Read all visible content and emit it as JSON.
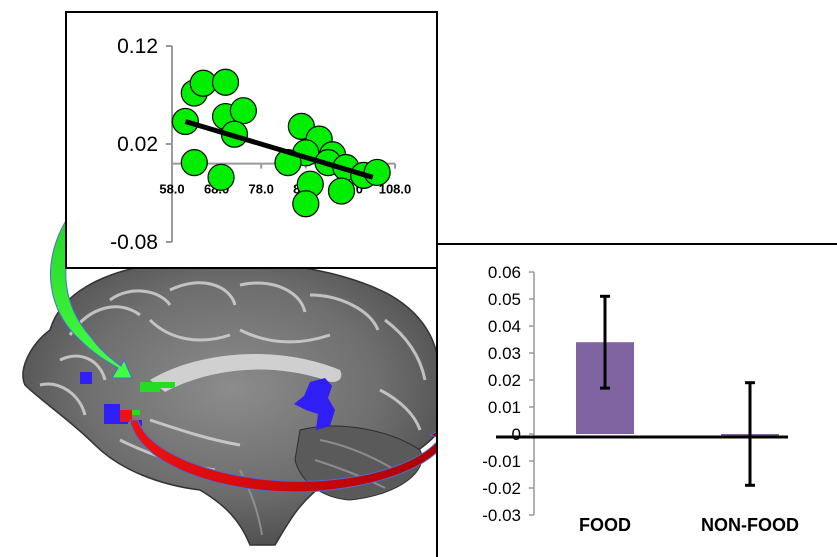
{
  "chart_data": [
    {
      "type": "scatter",
      "ylim": [
        -0.08,
        0.12
      ],
      "xlim": [
        58.0,
        108.0
      ],
      "y_ticks": [
        "0.12",
        "0.02",
        "-0.08"
      ],
      "x_ticks": [
        "58.0",
        "68.0",
        "78.0",
        "88.0",
        "98.0",
        "108.0"
      ],
      "points": [
        {
          "x": 61.0,
          "y": 0.043
        },
        {
          "x": 63.0,
          "y": 0.072
        },
        {
          "x": 65.0,
          "y": 0.082
        },
        {
          "x": 70.0,
          "y": 0.083
        },
        {
          "x": 70.0,
          "y": 0.048
        },
        {
          "x": 74.0,
          "y": 0.054
        },
        {
          "x": 72.0,
          "y": 0.03
        },
        {
          "x": 63.0,
          "y": 0.001
        },
        {
          "x": 69.0,
          "y": -0.014
        },
        {
          "x": 87.0,
          "y": 0.038
        },
        {
          "x": 91.0,
          "y": 0.025
        },
        {
          "x": 94.0,
          "y": 0.009
        },
        {
          "x": 88.0,
          "y": 0.011
        },
        {
          "x": 84.0,
          "y": 0.001
        },
        {
          "x": 93.0,
          "y": 0.001
        },
        {
          "x": 89.0,
          "y": -0.021
        },
        {
          "x": 97.0,
          "y": -0.004
        },
        {
          "x": 101.0,
          "y": -0.012
        },
        {
          "x": 104.0,
          "y": -0.009
        },
        {
          "x": 96.0,
          "y": -0.028
        },
        {
          "x": 88.0,
          "y": -0.041
        }
      ],
      "trendline": {
        "x": [
          61.0,
          103.0
        ],
        "y": [
          0.043,
          -0.014
        ]
      },
      "colors": {
        "points": "#00ee00",
        "point_stroke": "#000000",
        "trendline": "#000000"
      }
    },
    {
      "type": "bar",
      "categories": [
        "FOOD",
        "NON-FOOD"
      ],
      "values": [
        0.034,
        0.0
      ],
      "errors": [
        0.017,
        0.019
      ],
      "ylim": [
        -0.03,
        0.06
      ],
      "y_ticks": [
        "0.06",
        "0.05",
        "0.04",
        "0.03",
        "0.02",
        "0.01",
        "0",
        "-0.01",
        "-0.02",
        "-0.03"
      ],
      "colors": {
        "bars": "#8064a2"
      }
    }
  ],
  "brain": {
    "colors": {
      "green": "#22dd22",
      "blue": "#2f1ff5",
      "red": "#ee1111"
    }
  }
}
